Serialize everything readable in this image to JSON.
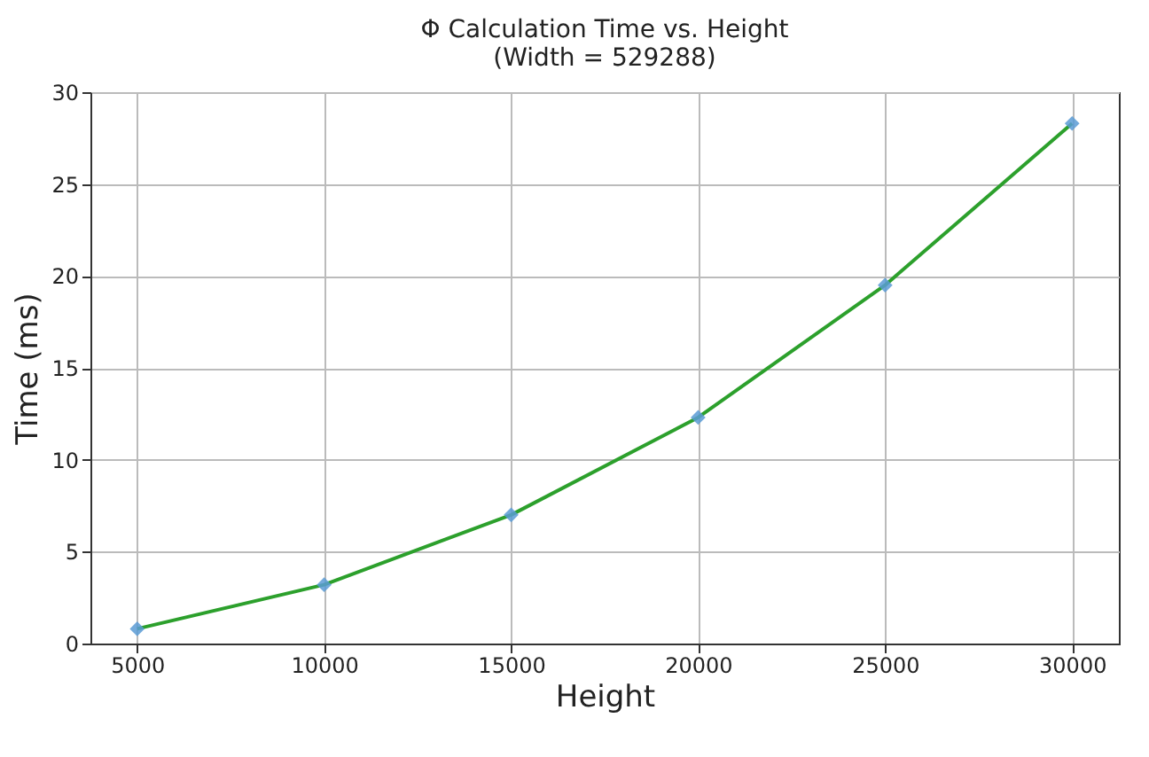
{
  "chart_data": {
    "type": "line",
    "title": "Φ Calculation Time vs. Height\n(Width = 529288)",
    "xlabel": "Height",
    "ylabel": "Time (ms)",
    "x": [
      5000,
      10000,
      15000,
      20000,
      25000,
      30000
    ],
    "series": [
      {
        "type": "scatter",
        "color": "#5b9bd5",
        "marker": "diamond",
        "values": [
          0.8,
          3.2,
          7.0,
          12.3,
          19.5,
          28.3
        ]
      },
      {
        "color": "#2ca02c",
        "marker": "none",
        "line_style": "solid",
        "values": [
          0.8,
          3.2,
          7.0,
          12.3,
          19.5,
          28.3
        ]
      }
    ],
    "xlim": [
      3750,
      31250
    ],
    "xticks": [
      5000,
      10000,
      15000,
      20000,
      25000,
      30000
    ],
    "ylim": [
      0,
      30
    ],
    "yticks": [
      0,
      5,
      10,
      15,
      20,
      25,
      30
    ],
    "grid": true
  }
}
